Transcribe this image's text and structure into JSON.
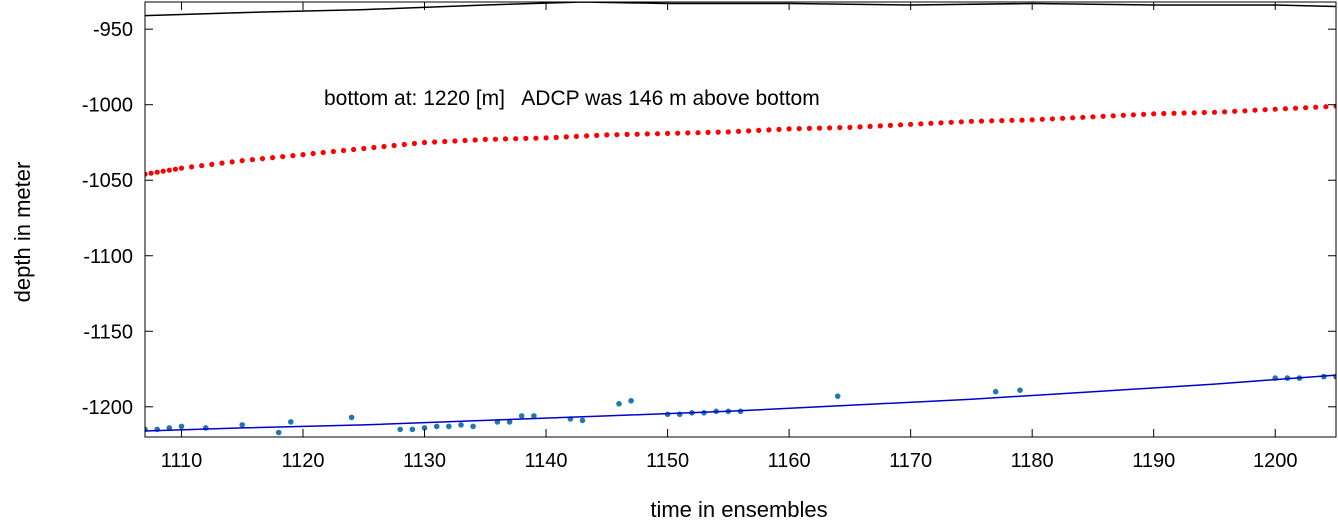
{
  "chart_data": {
    "type": "scatter",
    "title": "",
    "xlabel": "time in ensembles",
    "ylabel": "depth in meter",
    "xlim": [
      1107,
      1205
    ],
    "ylim": [
      -1220,
      -932
    ],
    "xticks": [
      1110,
      1120,
      1130,
      1140,
      1150,
      1160,
      1170,
      1180,
      1190,
      1200
    ],
    "yticks": [
      -950,
      -1000,
      -1050,
      -1100,
      -1150,
      -1200
    ],
    "grid": false,
    "annotation": "bottom at: 1220 [m]   ADCP was 146 m above bottom",
    "series": [
      {
        "type": "line",
        "color": "#000000",
        "x": [
          1107,
          1115,
          1125,
          1135,
          1143,
          1150,
          1160,
          1170,
          1180,
          1190,
          1200,
          1205
        ],
        "y": [
          -941,
          -939,
          -937,
          -934,
          -932,
          -933,
          -933,
          -934,
          -933,
          -934,
          -934,
          -935
        ]
      },
      {
        "type": "dotted",
        "color": "#ff0000",
        "x": [
          1107,
          1110,
          1115,
          1120,
          1125,
          1130,
          1135,
          1140,
          1145,
          1150,
          1155,
          1160,
          1165,
          1170,
          1175,
          1180,
          1185,
          1190,
          1195,
          1200,
          1205
        ],
        "y": [
          -1046,
          -1042,
          -1037,
          -1033,
          -1029,
          -1025,
          -1023,
          -1022,
          -1020,
          -1019,
          -1018,
          -1016,
          -1015,
          -1013,
          -1011,
          -1010,
          -1008,
          -1006,
          -1005,
          -1003,
          -1001
        ]
      },
      {
        "type": "scatter",
        "color": "#1f77b4",
        "x": [
          1107,
          1108,
          1109,
          1110,
          1112,
          1115,
          1118,
          1119,
          1124,
          1128,
          1129,
          1130,
          1131,
          1132,
          1133,
          1134,
          1136,
          1137,
          1138,
          1139,
          1142,
          1143,
          1146,
          1147,
          1150,
          1151,
          1152,
          1153,
          1154,
          1155,
          1156,
          1164,
          1177,
          1179,
          1200,
          1201,
          1202,
          1204,
          1205
        ],
        "y": [
          -1215,
          -1215,
          -1214,
          -1213,
          -1214,
          -1212,
          -1217,
          -1210,
          -1207,
          -1215,
          -1215,
          -1214,
          -1213,
          -1213,
          -1212,
          -1213,
          -1210,
          -1210,
          -1206,
          -1206,
          -1208,
          -1209,
          -1198,
          -1196,
          -1205,
          -1205,
          -1204,
          -1204,
          -1203,
          -1203,
          -1203,
          -1193,
          -1190,
          -1189,
          -1181,
          -1181,
          -1181,
          -1180,
          -1180
        ]
      },
      {
        "type": "line",
        "color": "#0000cc",
        "x": [
          1107,
          1115,
          1125,
          1135,
          1145,
          1155,
          1165,
          1175,
          1185,
          1195,
          1205
        ],
        "y": [
          -1216,
          -1214,
          -1212,
          -1209,
          -1206,
          -1203,
          -1199,
          -1195,
          -1190,
          -1185,
          -1179
        ]
      }
    ]
  }
}
